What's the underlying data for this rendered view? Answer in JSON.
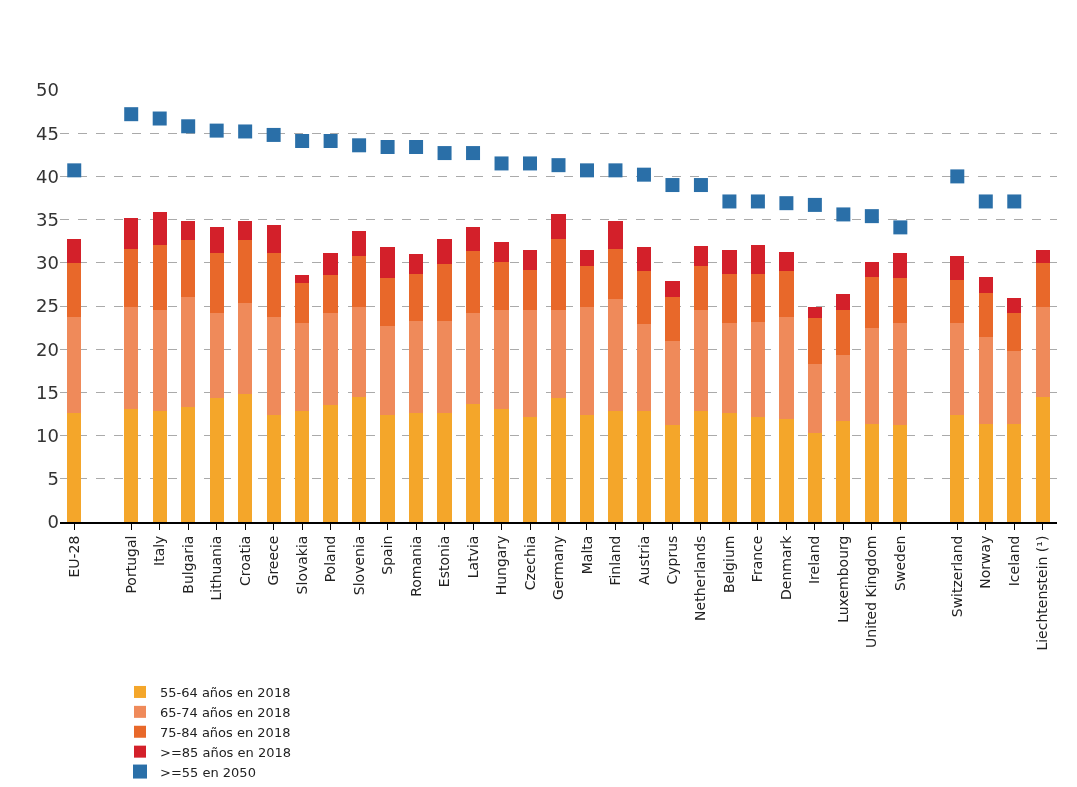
{
  "chart_data": {
    "type": "bar",
    "stacked": true,
    "categories": [
      "EU-28",
      null,
      "Portugal",
      "Italy",
      "Bulgaria",
      "Lithuania",
      "Croatia",
      "Greece",
      "Slovakia",
      "Poland",
      "Slovenia",
      "Spain",
      "Romania",
      "Estonia",
      "Latvia",
      "Hungary",
      "Czechia",
      "Germany",
      "Malta",
      "Finland",
      "Austria",
      "Cyprus",
      "Netherlands",
      "Belgium",
      "France",
      "Denmark",
      "Ireland",
      "Luxembourg",
      "United Kingdom",
      "Sweden",
      null,
      "Switzerland",
      "Norway",
      "Iceland",
      "Liechtenstein (¹)"
    ],
    "series": [
      {
        "name": "55-64 años en 2018",
        "color": "#f4a62a",
        "values": [
          12.6,
          null,
          13.1,
          12.9,
          13.3,
          14.3,
          14.8,
          12.4,
          12.9,
          13.6,
          14.5,
          12.4,
          12.6,
          12.6,
          13.7,
          13.1,
          12.1,
          14.3,
          12.4,
          12.9,
          12.9,
          11.2,
          12.9,
          12.6,
          12.1,
          11.9,
          10.3,
          11.7,
          11.4,
          11.2,
          null,
          12.4,
          11.4,
          11.4,
          14.5
        ]
      },
      {
        "name": "65-74 años en 2018",
        "color": "#ef8a5a",
        "values": [
          11.1,
          null,
          11.8,
          11.6,
          12.7,
          9.9,
          10.6,
          11.3,
          10.1,
          10.6,
          10.4,
          10.3,
          10.7,
          10.7,
          10.5,
          11.4,
          12.4,
          10.2,
          12.5,
          12.9,
          10.0,
          9.8,
          11.6,
          10.4,
          11.0,
          11.8,
          8.0,
          7.6,
          11.0,
          11.8,
          null,
          10.6,
          10.0,
          8.4,
          10.4
        ]
      },
      {
        "name": "75-84 años en 2018",
        "color": "#e8682a",
        "values": [
          6.3,
          null,
          6.7,
          7.6,
          6.6,
          6.9,
          7.2,
          7.4,
          4.7,
          4.4,
          5.9,
          5.5,
          5.4,
          6.6,
          7.2,
          5.6,
          4.7,
          8.3,
          4.7,
          5.8,
          6.1,
          5.0,
          5.1,
          5.7,
          5.6,
          5.3,
          5.3,
          5.2,
          5.9,
          5.2,
          null,
          5.0,
          5.1,
          4.4,
          5.1
        ]
      },
      {
        "name": ">=85 años en 2018",
        "color": "#d3202a",
        "values": [
          2.8,
          null,
          3.6,
          3.8,
          2.2,
          3.0,
          2.2,
          3.3,
          0.9,
          2.5,
          2.9,
          3.6,
          2.3,
          2.9,
          2.7,
          2.3,
          2.3,
          2.8,
          1.9,
          3.2,
          2.8,
          1.9,
          2.4,
          2.8,
          3.4,
          2.3,
          1.3,
          1.9,
          1.8,
          2.9,
          null,
          2.8,
          1.9,
          1.7,
          1.5
        ]
      },
      {
        "name": ">=55 en 2050",
        "color": "#2a6fa8",
        "type": "scatter",
        "marker": "square",
        "values": [
          40.7,
          null,
          47.2,
          46.7,
          45.8,
          45.3,
          45.2,
          44.8,
          44.1,
          44.1,
          43.6,
          43.4,
          43.4,
          42.7,
          42.7,
          41.5,
          41.5,
          41.3,
          40.7,
          40.7,
          40.2,
          39.0,
          39.0,
          37.1,
          37.1,
          36.9,
          36.7,
          35.6,
          35.4,
          34.1,
          null,
          40.0,
          37.1,
          37.1,
          null
        ]
      }
    ],
    "ylim": [
      0,
      50
    ],
    "yticks": [
      0,
      5,
      10,
      15,
      20,
      25,
      30,
      35,
      40,
      45,
      50
    ],
    "grid": "y",
    "legend": "bottom"
  }
}
